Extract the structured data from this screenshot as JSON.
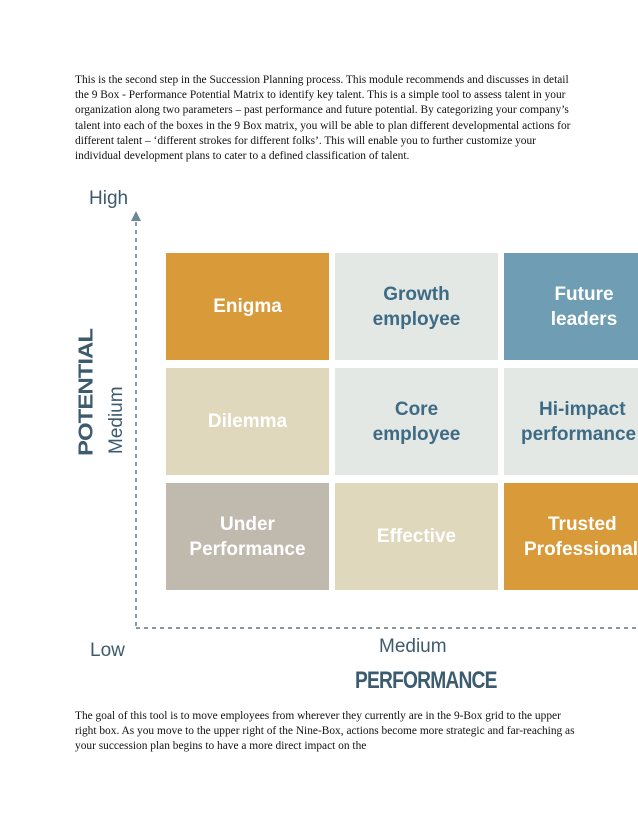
{
  "intro_text": "This is the second step in the Succession Planning process. This module recommends and discusses in detail the 9 Box - Performance Potential Matrix to identify key talent. This is a simple tool to assess talent in your organization along two parameters – past performance and future potential. By categorizing your company’s talent into each of the boxes in the 9 Box matrix, you will be able to plan different developmental actions for different talent – ‘different strokes for different folks’. This will enable you to further customize your individual development plans to cater to a defined classification of talent.",
  "matrix": {
    "y_axis_title": "POTENTIAL",
    "x_axis_title": "PERFORMANCE",
    "y_high": "High",
    "y_medium": "Medium",
    "x_low": "Low",
    "x_medium": "Medium",
    "cells": {
      "enigma": "Enigma",
      "growth_employee_1": "Growth",
      "growth_employee_2": "employee",
      "future_leaders_1": "Future",
      "future_leaders_2": "leaders",
      "dilemma": "Dilemma",
      "core_employee_1": "Core",
      "core_employee_2": "employee",
      "hi_impact_1": "Hi-impact",
      "hi_impact_2": "performance",
      "under_performance_1": "Under",
      "under_performance_2": "Performance",
      "effective": "Effective",
      "trusted_professional_1": "Trusted",
      "trusted_professional_2": "Professional"
    },
    "colors": {
      "orange": "#d99a3a",
      "light_grey": "#e4e8e5",
      "beige": "#e0d8bc",
      "grey": "#bfb9ae",
      "blue": "#6e9db4",
      "axis_text": "#3d5b6e"
    }
  },
  "outro_text": "The goal of this tool is to move employees from wherever they currently are in the 9-Box grid to the upper right box. As you move to the upper right of the Nine-Box, actions become more strategic and far-reaching as your succession plan begins to have a more direct impact on the"
}
